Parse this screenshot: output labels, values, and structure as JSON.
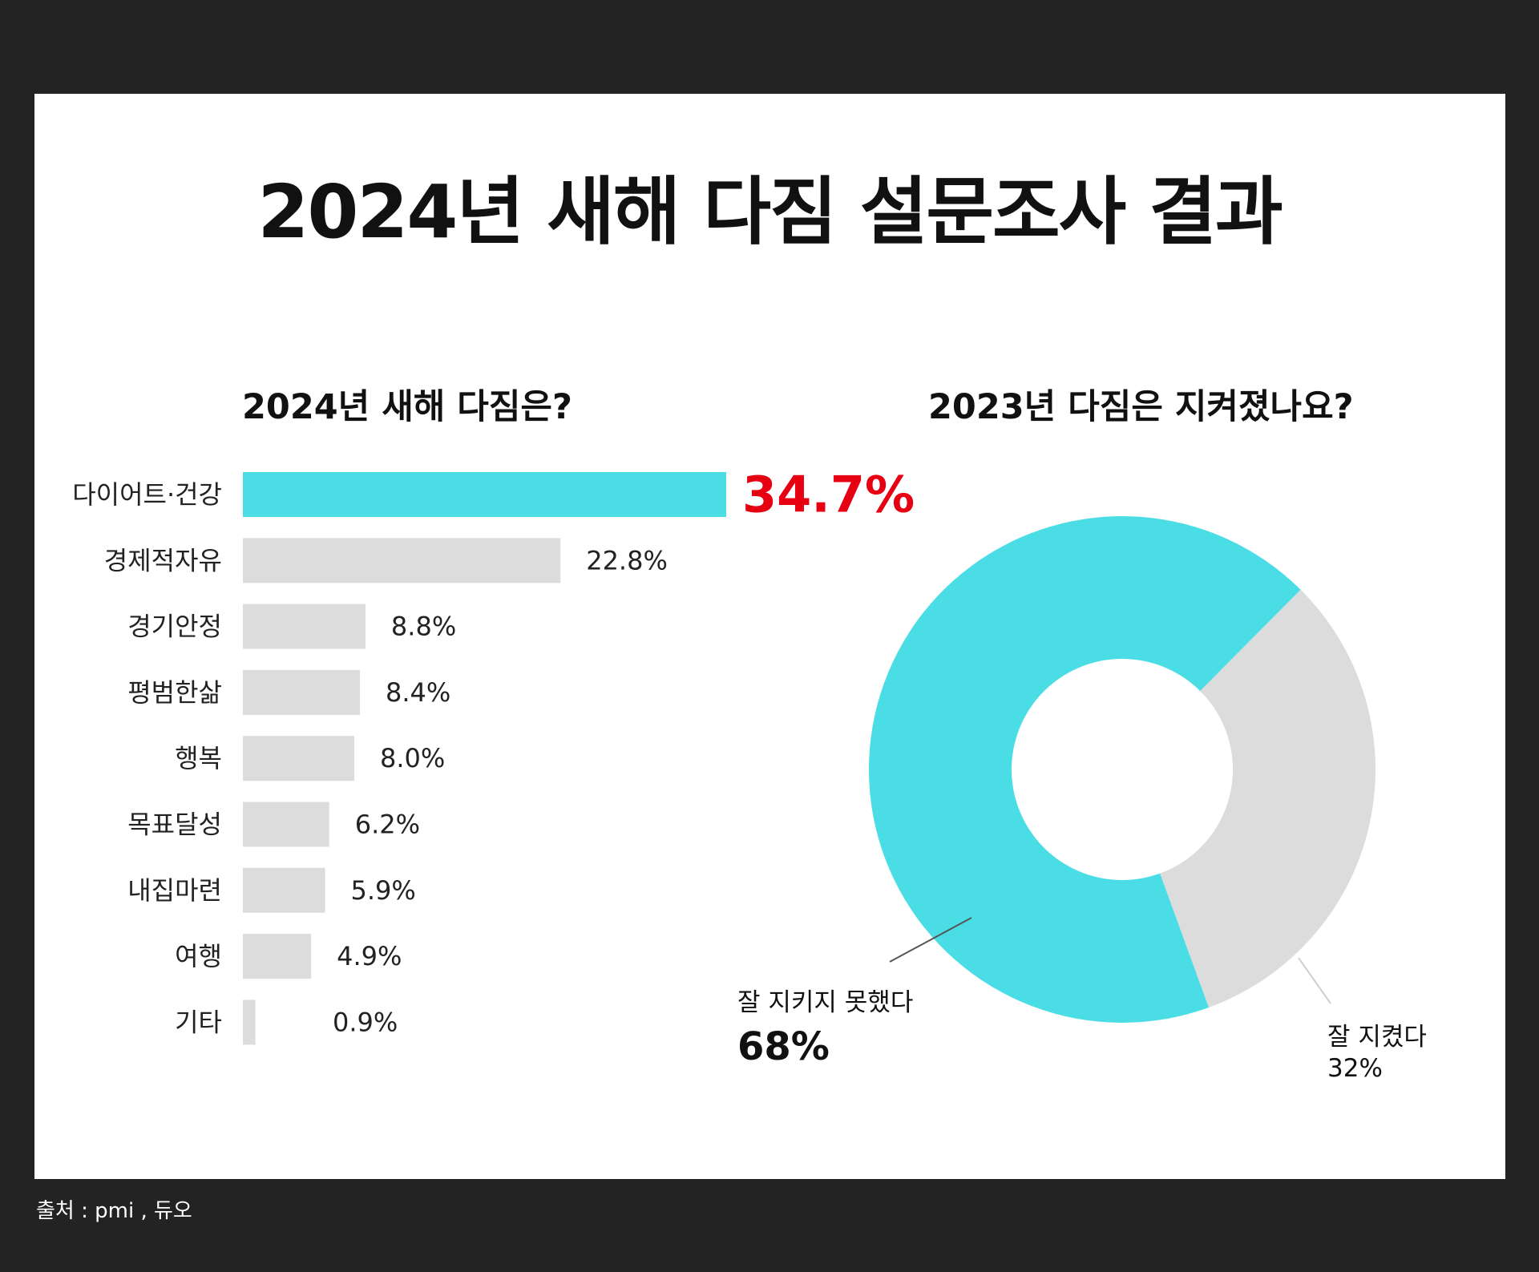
{
  "title": "2024년 새해 다짐 설문조사 결과",
  "source": "출처 : pmi , 듀오",
  "colors": {
    "accent": "#4adde5",
    "neutral": "#dcdcdc",
    "highlight_text": "#e60012",
    "text": "#111111"
  },
  "chart_data": [
    {
      "type": "bar",
      "orientation": "horizontal",
      "title": "2024년 새해 다짐은?",
      "categories": [
        "다이어트·건강",
        "경제적자유",
        "경기안정",
        "평범한삶",
        "행복",
        "목표달성",
        "내집마련",
        "여행",
        "기타"
      ],
      "values": [
        34.7,
        22.8,
        8.8,
        8.4,
        8.0,
        6.2,
        5.9,
        4.9,
        0.9
      ],
      "value_labels": [
        "34.7%",
        "22.8%",
        "8.8%",
        "8.4%",
        "8.0%",
        "6.2%",
        "5.9%",
        "4.9%",
        "0.9%"
      ],
      "highlight_index": 0,
      "unit": "%",
      "grid": false
    },
    {
      "type": "pie",
      "variant": "donut",
      "title": "2023년 다짐은 지켜졌나요?",
      "slices": [
        {
          "label": "잘 지키지 못했다",
          "value": 68,
          "value_label": "68%",
          "color": "#4adde5"
        },
        {
          "label": "잘 지켰다",
          "value": 32,
          "value_label": "32%",
          "color": "#dcdcdc"
        }
      ]
    }
  ]
}
